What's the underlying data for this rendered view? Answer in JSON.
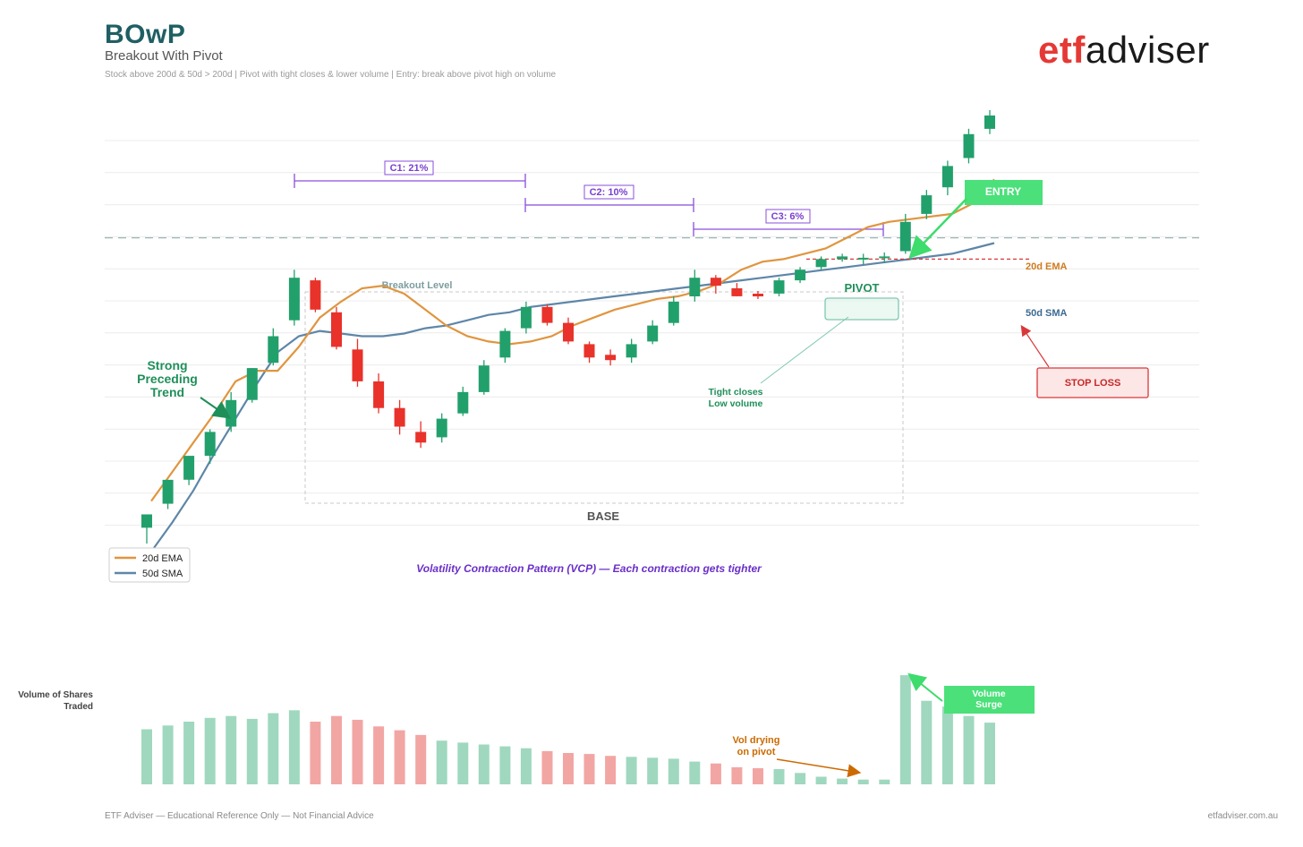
{
  "header": {
    "title": "BOwP",
    "subtitle": "Breakout With Pivot",
    "tagline": "Stock above 200d & 50d > 200d  |  Pivot with tight closes & lower volume  |  Entry: break above pivot high on volume"
  },
  "logo": {
    "part1": "etf",
    "part2": "adviser"
  },
  "footer": {
    "left": "ETF Adviser — Educational Reference Only — Not Financial Advice",
    "right": "etfadviser.com.au"
  },
  "volume_label": "Volume of Shares Traded",
  "colors": {
    "up": "#22a06b",
    "down": "#e8322a",
    "ema": "#e0953f",
    "sma": "#5e86a8",
    "contraction": "#8a4fdc",
    "entry": "#4be07a",
    "stop": "#d9383a",
    "volume_note": "#cc6a00",
    "annotation_green": "#1f8f5a"
  },
  "annotations": {
    "strong_trend": [
      "Strong",
      "Preceding",
      "Trend"
    ],
    "breakout_level": "Breakout Level",
    "base": "BASE",
    "pivot": "PIVOT",
    "tight_closes": [
      "Tight closes",
      "Low volume"
    ],
    "entry": "ENTRY",
    "stop_loss": "STOP LOSS",
    "ema_label": "20d EMA",
    "sma_label": "50d SMA",
    "vcp": "Volatility Contraction Pattern (VCP) — Each contraction gets tighter",
    "vol_drying": [
      "Vol drying",
      "on pivot"
    ],
    "volume_surge": [
      "Volume",
      "Surge"
    ],
    "contractions": [
      "C1: 21%",
      "C2: 10%",
      "C3: 6%"
    ]
  },
  "chart_data": [
    {
      "type": "candlestick",
      "title": "",
      "series": [
        {
          "name": "20d EMA",
          "values": [
            2.1,
            3.2,
            4.3,
            5.4,
            6.6,
            7.0,
            7.0,
            7.9,
            9.0,
            9.6,
            10.1,
            10.2,
            9.9,
            9.3,
            8.7,
            8.3,
            8.1,
            8.0,
            8.1,
            8.3,
            8.7,
            9.0,
            9.3,
            9.5,
            9.7,
            9.8,
            10.0,
            10.3,
            10.8,
            11.1,
            11.2,
            11.4,
            11.6,
            12.0,
            12.4,
            12.6,
            12.7,
            12.8,
            12.9,
            13.3,
            14.2,
            15.1,
            16.1,
            17.1
          ]
        },
        {
          "name": "50d SMA",
          "values": [
            0.2,
            1.3,
            2.5,
            3.9,
            5.2,
            6.5,
            7.7,
            8.3,
            8.5,
            8.4,
            8.3,
            8.3,
            8.4,
            8.6,
            8.7,
            8.9,
            9.1,
            9.2,
            9.4,
            9.5,
            9.6,
            9.7,
            9.8,
            9.9,
            10.0,
            10.1,
            10.2,
            10.3,
            10.4,
            10.5,
            10.6,
            10.7,
            10.8,
            10.9,
            11.0,
            11.1,
            11.2,
            11.3,
            11.4,
            11.6,
            11.8,
            12.0,
            12.2,
            12.3
          ]
        }
      ],
      "candles": [
        {
          "o": 1.1,
          "h": 1.6,
          "l": 0.5,
          "c": 1.6
        },
        {
          "o": 2.0,
          "h": 2.9,
          "l": 1.8,
          "c": 2.9
        },
        {
          "o": 2.9,
          "h": 3.8,
          "l": 2.7,
          "c": 3.8
        },
        {
          "o": 3.8,
          "h": 4.8,
          "l": 3.5,
          "c": 4.7
        },
        {
          "o": 4.9,
          "h": 6.2,
          "l": 4.7,
          "c": 5.9
        },
        {
          "o": 5.9,
          "h": 7.1,
          "l": 5.8,
          "c": 7.1
        },
        {
          "o": 7.3,
          "h": 8.6,
          "l": 7.2,
          "c": 8.3
        },
        {
          "o": 8.9,
          "h": 10.8,
          "l": 8.7,
          "c": 10.5
        },
        {
          "o": 10.4,
          "h": 10.5,
          "l": 9.2,
          "c": 9.3
        },
        {
          "o": 9.2,
          "h": 9.4,
          "l": 7.8,
          "c": 7.9
        },
        {
          "o": 7.8,
          "h": 8.2,
          "l": 6.4,
          "c": 6.6
        },
        {
          "o": 6.6,
          "h": 6.9,
          "l": 5.4,
          "c": 5.6
        },
        {
          "o": 5.6,
          "h": 5.9,
          "l": 4.6,
          "c": 4.9
        },
        {
          "o": 4.7,
          "h": 5.1,
          "l": 4.1,
          "c": 4.3
        },
        {
          "o": 4.5,
          "h": 5.4,
          "l": 4.3,
          "c": 5.2
        },
        {
          "o": 5.4,
          "h": 6.4,
          "l": 5.3,
          "c": 6.2
        },
        {
          "o": 6.2,
          "h": 7.4,
          "l": 6.1,
          "c": 7.2
        },
        {
          "o": 7.5,
          "h": 8.6,
          "l": 7.3,
          "c": 8.5
        },
        {
          "o": 8.6,
          "h": 9.6,
          "l": 8.4,
          "c": 9.4
        },
        {
          "o": 9.4,
          "h": 9.5,
          "l": 8.7,
          "c": 8.8
        },
        {
          "o": 8.8,
          "h": 9.0,
          "l": 8.0,
          "c": 8.1
        },
        {
          "o": 8.0,
          "h": 8.1,
          "l": 7.3,
          "c": 7.5
        },
        {
          "o": 7.6,
          "h": 7.8,
          "l": 7.2,
          "c": 7.4
        },
        {
          "o": 7.5,
          "h": 8.2,
          "l": 7.3,
          "c": 8.0
        },
        {
          "o": 8.1,
          "h": 8.9,
          "l": 8.0,
          "c": 8.7
        },
        {
          "o": 8.8,
          "h": 9.8,
          "l": 8.7,
          "c": 9.6
        },
        {
          "o": 9.8,
          "h": 10.8,
          "l": 9.6,
          "c": 10.5
        },
        {
          "o": 10.5,
          "h": 10.6,
          "l": 9.9,
          "c": 10.2
        },
        {
          "o": 10.1,
          "h": 10.3,
          "l": 9.8,
          "c": 9.8
        },
        {
          "o": 9.9,
          "h": 10.0,
          "l": 9.7,
          "c": 9.8
        },
        {
          "o": 9.9,
          "h": 10.5,
          "l": 9.8,
          "c": 10.4
        },
        {
          "o": 10.4,
          "h": 10.9,
          "l": 10.3,
          "c": 10.8
        },
        {
          "o": 10.9,
          "h": 11.3,
          "l": 10.8,
          "c": 11.2
        },
        {
          "o": 11.2,
          "h": 11.4,
          "l": 11.1,
          "c": 11.3
        },
        {
          "o": 11.2,
          "h": 11.4,
          "l": 11.0,
          "c": 11.25
        },
        {
          "o": 11.25,
          "h": 11.45,
          "l": 11.05,
          "c": 11.3
        },
        {
          "o": 11.5,
          "h": 12.9,
          "l": 11.4,
          "c": 12.6
        },
        {
          "o": 12.9,
          "h": 13.8,
          "l": 12.7,
          "c": 13.6
        },
        {
          "o": 13.9,
          "h": 14.9,
          "l": 13.6,
          "c": 14.7
        },
        {
          "o": 15.0,
          "h": 16.1,
          "l": 14.8,
          "c": 15.9
        },
        {
          "o": 16.1,
          "h": 16.8,
          "l": 15.9,
          "c": 16.6
        }
      ],
      "breakout_level": 12.0,
      "stop_level": 11.2
    },
    {
      "type": "bar",
      "title": "",
      "values": [
        58,
        62,
        66,
        70,
        72,
        69,
        75,
        78,
        66,
        72,
        68,
        61,
        57,
        52,
        46,
        44,
        42,
        40,
        38,
        35,
        33,
        32,
        30,
        29,
        28,
        27,
        24,
        22,
        18,
        17,
        16,
        12,
        8,
        6,
        5,
        5,
        115,
        88,
        82,
        72,
        65
      ],
      "colors": [
        "up",
        "up",
        "up",
        "up",
        "up",
        "up",
        "up",
        "up",
        "down",
        "down",
        "down",
        "down",
        "down",
        "down",
        "up",
        "up",
        "up",
        "up",
        "up",
        "down",
        "down",
        "down",
        "down",
        "up",
        "up",
        "up",
        "up",
        "down",
        "down",
        "down",
        "up",
        "up",
        "up",
        "up",
        "up",
        "up",
        "up",
        "up",
        "up",
        "up",
        "up"
      ]
    }
  ]
}
